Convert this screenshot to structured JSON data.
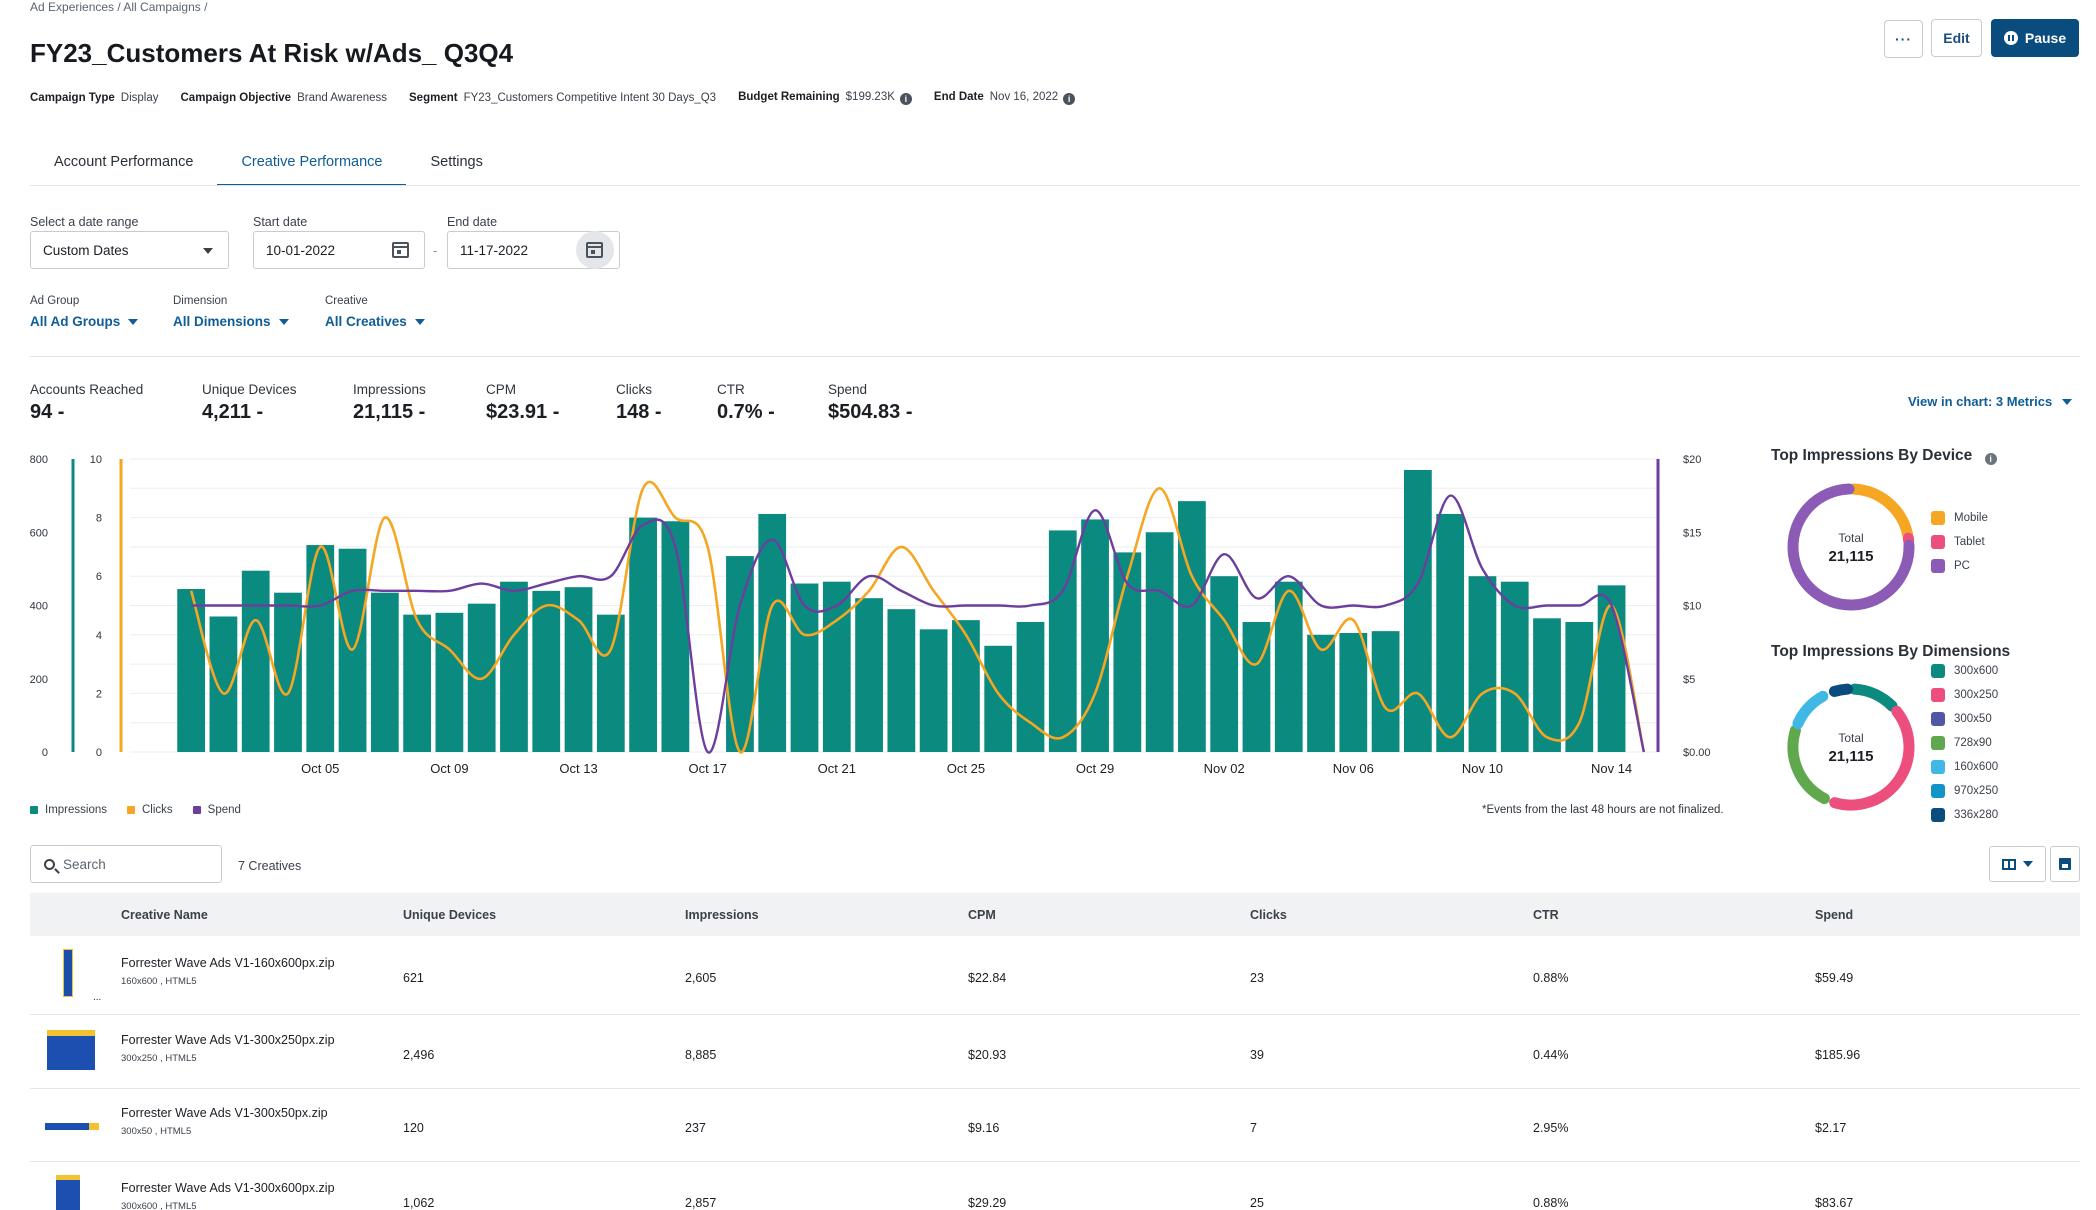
{
  "breadcrumb": "Ad Experiences / All Campaigns /",
  "title": "FY23_Customers At Risk w/Ads_ Q3Q4",
  "meta": {
    "campaign_type_label": "Campaign Type",
    "campaign_type": "Display",
    "objective_label": "Campaign Objective",
    "objective": "Brand Awareness",
    "segment_label": "Segment",
    "segment": "FY23_Customers Competitive Intent 30 Days_Q3",
    "budget_label": "Budget Remaining",
    "budget": "$199.23K",
    "end_label": "End Date",
    "end": "Nov 16, 2022"
  },
  "actions": {
    "more": "···",
    "edit": "Edit",
    "pause": "Pause"
  },
  "tabs": [
    "Account Performance",
    "Creative Performance",
    "Settings"
  ],
  "filters": {
    "range_label": "Select a date range",
    "range_value": "Custom Dates",
    "start_label": "Start date",
    "start_value": "10-01-2022",
    "end_label": "End date",
    "end_value": "11-17-2022",
    "separator": "-",
    "ad_group_label": "Ad Group",
    "ad_group_value": "All Ad Groups",
    "dimension_label": "Dimension",
    "dimension_value": "All Dimensions",
    "creative_label": "Creative",
    "creative_value": "All Creatives"
  },
  "metrics": [
    {
      "label": "Accounts Reached",
      "value": "94 -"
    },
    {
      "label": "Unique Devices",
      "value": "4,211 -"
    },
    {
      "label": "Impressions",
      "value": "21,115 -"
    },
    {
      "label": "CPM",
      "value": "$23.91 -"
    },
    {
      "label": "Clicks",
      "value": "148 -"
    },
    {
      "label": "CTR",
      "value": "0.7% -"
    },
    {
      "label": "Spend",
      "value": "$504.83 -"
    }
  ],
  "view_in_chart": "View in chart: 3 Metrics",
  "colors": {
    "impressions": "#0b8a80",
    "clicks": "#f5a623",
    "spend": "#6c3e9e",
    "accent": "#0f5d96"
  },
  "chart_data": {
    "type": "bar+line",
    "x_tick_labels": [
      "Oct 05",
      "Oct 09",
      "Oct 13",
      "Oct 17",
      "Oct 21",
      "Oct 25",
      "Oct 29",
      "Nov 02",
      "Nov 06",
      "Nov 10",
      "Nov 14"
    ],
    "y_left_impressions": {
      "ticks": [
        "800",
        "600",
        "400",
        "200",
        "0"
      ],
      "ylim": [
        0,
        800
      ]
    },
    "y_left_clicks": {
      "ticks": [
        "10",
        "8",
        "6",
        "4",
        "2",
        "0"
      ],
      "ylim": [
        0,
        10
      ]
    },
    "y_right_spend": {
      "ticks": [
        "$20",
        "$15",
        "$10",
        "$5",
        "$0.00"
      ],
      "ylim": [
        0,
        20
      ]
    },
    "series": [
      {
        "name": "Impressions",
        "type": "bar",
        "values": [
          445,
          370,
          495,
          435,
          565,
          555,
          435,
          375,
          380,
          405,
          465,
          440,
          450,
          375,
          640,
          630,
          0,
          535,
          650,
          460,
          465,
          420,
          390,
          335,
          360,
          290,
          355,
          605,
          635,
          545,
          600,
          685,
          480,
          355,
          465,
          320,
          325,
          330,
          770,
          650,
          480,
          465,
          365,
          355,
          455,
          0
        ]
      },
      {
        "name": "Clicks",
        "type": "line",
        "values": [
          5.5,
          2.0,
          4.5,
          2.0,
          7.0,
          3.5,
          8.0,
          4.5,
          3.5,
          2.5,
          4.0,
          5.0,
          4.5,
          3.5,
          9.0,
          8.0,
          7.0,
          0.0,
          5.0,
          4.0,
          4.5,
          5.5,
          7.0,
          5.5,
          4.0,
          2.0,
          1.0,
          0.5,
          2.0,
          6.0,
          9.0,
          6.0,
          4.5,
          3.0,
          5.5,
          3.5,
          4.5,
          1.5,
          2.0,
          0.5,
          2.0,
          2.0,
          0.5,
          1.0,
          5.0,
          0.0
        ]
      },
      {
        "name": "Spend",
        "type": "line",
        "values": [
          10.0,
          10.0,
          10.0,
          10.0,
          10.0,
          11.0,
          11.0,
          11.0,
          11.0,
          11.5,
          11.0,
          11.5,
          12.0,
          12.0,
          15.5,
          14.0,
          0.0,
          10.0,
          14.5,
          10.0,
          10.0,
          12.0,
          11.0,
          10.0,
          10.0,
          10.0,
          10.0,
          11.0,
          16.5,
          11.5,
          11.0,
          10.0,
          13.5,
          10.5,
          12.0,
          10.0,
          10.0,
          10.0,
          11.5,
          17.5,
          12.5,
          10.0,
          10.0,
          10.0,
          10.0,
          0.0
        ]
      }
    ],
    "legend": [
      "Impressions",
      "Clicks",
      "Spend"
    ]
  },
  "footnote": "*Events from the last 48 hours are not finalized.",
  "device_donut": {
    "title": "Top Impressions By Device",
    "total_label": "Total",
    "total_value": "21,115",
    "slices": [
      {
        "label": "Mobile",
        "value": 22,
        "color": "#f5a623"
      },
      {
        "label": "Tablet",
        "value": 2,
        "color": "#ec4f7d"
      },
      {
        "label": "PC",
        "value": 76,
        "color": "#8c5bb5"
      }
    ]
  },
  "dimension_donut": {
    "title": "Top Impressions By Dimensions",
    "total_label": "Total",
    "total_value": "21,115",
    "slices": [
      {
        "label": "300x600",
        "value": 13.5,
        "color": "#0b8a80"
      },
      {
        "label": "300x250",
        "value": 42,
        "color": "#ec4f7d"
      },
      {
        "label": "300x50",
        "value": 1.1,
        "color": "#5057a6"
      },
      {
        "label": "728x90",
        "value": 24,
        "color": "#5fa84e"
      },
      {
        "label": "160x600",
        "value": 12.3,
        "color": "#3fb8e6"
      },
      {
        "label": "970x250",
        "value": 1.5,
        "color": "#1294c7"
      },
      {
        "label": "336x280",
        "value": 5.6,
        "color": "#0a4c7e"
      }
    ]
  },
  "table": {
    "search_placeholder": "Search",
    "count": "7 Creatives",
    "columns": [
      "Creative Name",
      "Unique Devices",
      "Impressions",
      "CPM",
      "Clicks",
      "CTR",
      "Spend"
    ],
    "rows": [
      {
        "name": "Forrester Wave Ads V1-160x600px.zip",
        "sub": "160x600 , HTML5",
        "devices": "621",
        "impressions": "2,605",
        "cpm": "$22.84",
        "clicks": "23",
        "ctr": "0.88%",
        "spend": "$59.49",
        "more": "..."
      },
      {
        "name": "Forrester Wave Ads V1-300x250px.zip",
        "sub": "300x250 , HTML5",
        "devices": "2,496",
        "impressions": "8,885",
        "cpm": "$20.93",
        "clicks": "39",
        "ctr": "0.44%",
        "spend": "$185.96",
        "more": ""
      },
      {
        "name": "Forrester Wave Ads V1-300x50px.zip",
        "sub": "300x50 , HTML5",
        "devices": "120",
        "impressions": "237",
        "cpm": "$9.16",
        "clicks": "7",
        "ctr": "2.95%",
        "spend": "$2.17",
        "more": ""
      },
      {
        "name": "Forrester Wave Ads V1-300x600px.zip",
        "sub": "300x600 , HTML5",
        "devices": "1,062",
        "impressions": "2,857",
        "cpm": "$29.29",
        "clicks": "25",
        "ctr": "0.88%",
        "spend": "$83.67",
        "more": ""
      }
    ]
  }
}
